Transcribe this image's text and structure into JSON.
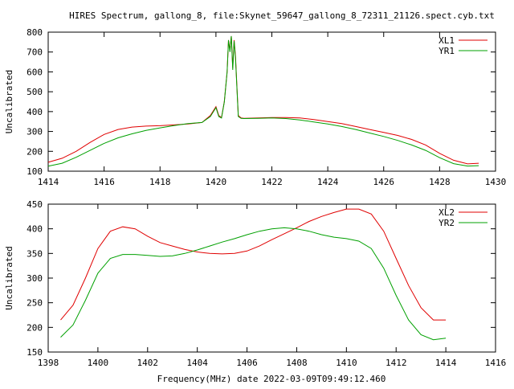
{
  "title": "HIRES Spectrum, gallong_8, file:Skynet_59647_gallong_8_72311_21126.spect.cyb.txt",
  "xlabel": "Frequency(MHz) date 2022-03-09T09:49:12.460",
  "colors": {
    "red": "#e00000",
    "green": "#00a000",
    "axis": "#000000"
  },
  "chart_data": [
    {
      "type": "line",
      "title": "HIRES Spectrum, gallong_8, file:Skynet_59647_gallong_8_72311_21126.spect.cyb.txt",
      "ylabel": "Uncalibrated",
      "xlim": [
        1414,
        1430
      ],
      "ylim": [
        100,
        800
      ],
      "xticks": [
        1414,
        1416,
        1418,
        1420,
        1422,
        1424,
        1426,
        1428,
        1430
      ],
      "yticks": [
        100,
        200,
        300,
        400,
        500,
        600,
        700,
        800
      ],
      "legend_position": "top-right",
      "series": [
        {
          "name": "XL1",
          "color": "#e00000",
          "x": [
            1414.0,
            1414.5,
            1415.0,
            1415.5,
            1416.0,
            1416.5,
            1417.0,
            1417.5,
            1418.0,
            1418.5,
            1419.0,
            1419.5,
            1419.8,
            1420.0,
            1420.1,
            1420.2,
            1420.3,
            1420.4,
            1420.45,
            1420.5,
            1420.55,
            1420.6,
            1420.65,
            1420.7,
            1420.8,
            1420.9,
            1421.0,
            1421.5,
            1422.0,
            1422.5,
            1423.0,
            1423.5,
            1424.0,
            1424.5,
            1425.0,
            1425.5,
            1426.0,
            1426.5,
            1427.0,
            1427.5,
            1428.0,
            1428.5,
            1429.0,
            1429.4
          ],
          "y": [
            145,
            165,
            200,
            245,
            285,
            310,
            322,
            327,
            329,
            333,
            338,
            345,
            380,
            425,
            380,
            370,
            450,
            600,
            760,
            710,
            780,
            620,
            760,
            680,
            380,
            368,
            366,
            368,
            370,
            370,
            368,
            360,
            350,
            340,
            325,
            310,
            295,
            280,
            260,
            232,
            190,
            155,
            137,
            140
          ]
        },
        {
          "name": "YR1",
          "color": "#00a000",
          "x": [
            1414.0,
            1414.5,
            1415.0,
            1415.5,
            1416.0,
            1416.5,
            1417.0,
            1417.5,
            1418.0,
            1418.5,
            1419.0,
            1419.5,
            1419.8,
            1420.0,
            1420.1,
            1420.2,
            1420.3,
            1420.4,
            1420.45,
            1420.5,
            1420.55,
            1420.6,
            1420.65,
            1420.7,
            1420.8,
            1420.9,
            1421.0,
            1421.5,
            1422.0,
            1422.5,
            1423.0,
            1423.5,
            1424.0,
            1424.5,
            1425.0,
            1425.5,
            1426.0,
            1426.5,
            1427.0,
            1427.5,
            1428.0,
            1428.5,
            1429.0,
            1429.4
          ],
          "y": [
            125,
            140,
            170,
            205,
            240,
            268,
            288,
            305,
            318,
            330,
            340,
            345,
            375,
            420,
            375,
            368,
            448,
            600,
            760,
            700,
            780,
            610,
            755,
            670,
            375,
            366,
            365,
            366,
            368,
            365,
            358,
            348,
            338,
            325,
            310,
            292,
            275,
            255,
            232,
            205,
            168,
            138,
            126,
            128
          ]
        }
      ]
    },
    {
      "type": "line",
      "xlabel": "Frequency(MHz) date 2022-03-09T09:49:12.460",
      "ylabel": "Uncalibrated",
      "xlim": [
        1398,
        1416
      ],
      "ylim": [
        150,
        450
      ],
      "xticks": [
        1398,
        1400,
        1402,
        1404,
        1406,
        1408,
        1410,
        1412,
        1414,
        1416
      ],
      "yticks": [
        150,
        200,
        250,
        300,
        350,
        400,
        450
      ],
      "legend_position": "top-right",
      "series": [
        {
          "name": "XL2",
          "color": "#e00000",
          "x": [
            1398.5,
            1399.0,
            1399.5,
            1400.0,
            1400.5,
            1401.0,
            1401.5,
            1402.0,
            1402.5,
            1403.0,
            1403.5,
            1404.0,
            1404.5,
            1405.0,
            1405.5,
            1406.0,
            1406.5,
            1407.0,
            1407.5,
            1408.0,
            1408.5,
            1409.0,
            1409.5,
            1410.0,
            1410.5,
            1411.0,
            1411.5,
            1412.0,
            1412.5,
            1413.0,
            1413.5,
            1414.0
          ],
          "y": [
            215,
            245,
            300,
            360,
            395,
            404,
            400,
            385,
            372,
            365,
            358,
            353,
            350,
            349,
            350,
            355,
            365,
            378,
            390,
            402,
            415,
            425,
            433,
            440,
            440,
            430,
            395,
            340,
            285,
            240,
            215,
            215
          ]
        },
        {
          "name": "YR2",
          "color": "#00a000",
          "x": [
            1398.5,
            1399.0,
            1399.5,
            1400.0,
            1400.5,
            1401.0,
            1401.5,
            1402.0,
            1402.5,
            1403.0,
            1403.5,
            1404.0,
            1404.5,
            1405.0,
            1405.5,
            1406.0,
            1406.5,
            1407.0,
            1407.5,
            1408.0,
            1408.5,
            1409.0,
            1409.5,
            1410.0,
            1410.5,
            1411.0,
            1411.5,
            1412.0,
            1412.5,
            1413.0,
            1413.5,
            1414.0
          ],
          "y": [
            180,
            205,
            255,
            310,
            340,
            348,
            348,
            346,
            344,
            345,
            350,
            357,
            365,
            373,
            380,
            388,
            395,
            400,
            402,
            400,
            395,
            388,
            383,
            380,
            375,
            360,
            320,
            265,
            215,
            185,
            175,
            178
          ]
        }
      ]
    }
  ]
}
